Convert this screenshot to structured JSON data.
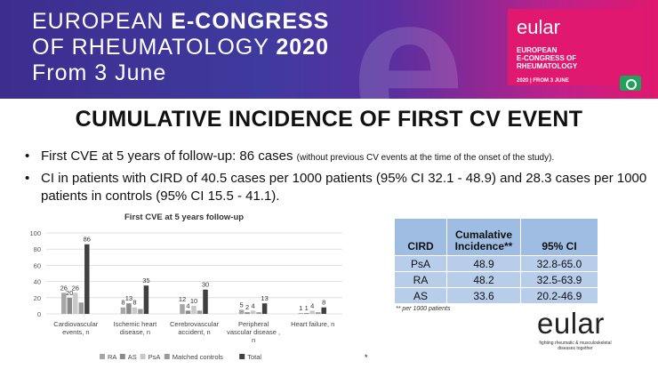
{
  "banner": {
    "line1_a": "EUROPEAN ",
    "line1_b": "E-CONGRESS",
    "line2_a": "OF RHEUMATOLOGY ",
    "line2_b": "2020",
    "line3": "From 3 June",
    "box_title": "eular",
    "box_line1": "EUROPEAN",
    "box_line2": "E-CONGRESS OF",
    "box_line3": "RHEUMATOLOGY",
    "box_date": "2020 | FROM 3 JUNE",
    "accent_color": "#e0186f",
    "camera_icon": "camera-icon"
  },
  "slide": {
    "title": "CUMULATIVE INCIDENCE OF FIRST CV EVENT",
    "bullet1_main": "First CVE at 5 years of follow-up: 86 cases ",
    "bullet1_small": "(without previous CV events at the time of the onset of the study).",
    "bullet2": "CI in patients with CIRD of 40.5 cases per 1000 patients (95% CI 32.1 - 48.9) and 28.3 cases per 1000 patients in controls (95% CI 15.5 - 41.1)."
  },
  "chart_data": {
    "type": "bar",
    "title": "First CVE at  5 years follow-up",
    "ylim": [
      0,
      100
    ],
    "yticks": [
      0,
      20,
      40,
      60,
      80,
      100
    ],
    "categories": [
      [
        "Cardiovascular",
        "events, n"
      ],
      [
        "Ischemic heart",
        "disease, n"
      ],
      [
        "Cerebrovascular",
        "accident, n"
      ],
      [
        "Peripheral",
        "vascular disease ,",
        "n"
      ],
      [
        "Heart failure, n"
      ]
    ],
    "series": [
      {
        "name": "RA",
        "values": [
          26,
          8,
          12,
          5,
          1
        ],
        "color": "#a6a6a6"
      },
      {
        "name": "AS",
        "values": [
          20,
          13,
          4,
          2,
          1
        ],
        "color": "#8a8a8a"
      },
      {
        "name": "PsA",
        "values": [
          26,
          8,
          10,
          4,
          4
        ],
        "color": "#c8c8c8"
      },
      {
        "name": "Matched controls",
        "values": [
          14,
          6,
          4,
          2,
          2
        ],
        "color": "#9a9a9a"
      },
      {
        "name": "Total",
        "values": [
          86,
          35,
          30,
          13,
          8
        ],
        "color": "#404040"
      }
    ],
    "labeled_series": [
      "RA",
      "AS",
      "PsA",
      "Total"
    ],
    "grid": true,
    "legend": "bottom"
  },
  "table": {
    "headers": [
      "CIRD",
      "Cumalative Incidence**",
      "95% CI"
    ],
    "rows": [
      [
        "PsA",
        "48.9",
        "32.8-65.0"
      ],
      [
        "RA",
        "48.2",
        "32.5-63.9"
      ],
      [
        "AS",
        "33.6",
        "20.2-46.9"
      ]
    ],
    "note": "** per 1000 patients"
  },
  "footer": {
    "logo": "eular",
    "tagline": "fighting rheumatic & musculoskeletal diseases together",
    "mark": "*"
  }
}
